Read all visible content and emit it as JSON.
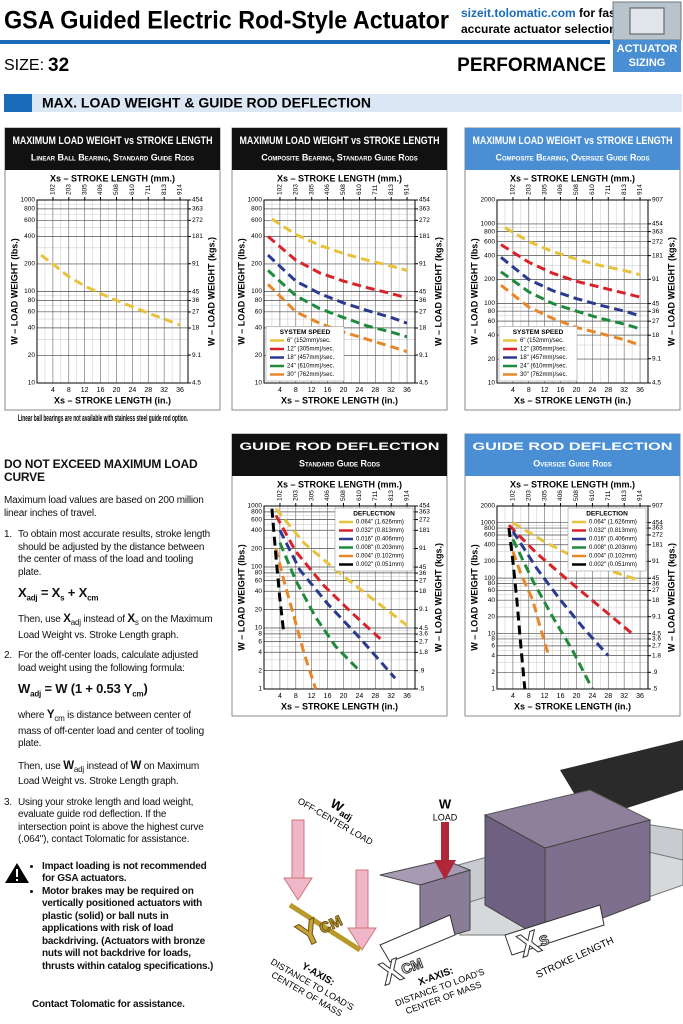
{
  "header": {
    "title": "GSA Guided Electric Rod-Style Actuator",
    "link": "sizeit.tolomatic.com",
    "link_text": " for fast,",
    "link_text2": "accurate actuator selection",
    "size_label": "SIZE:",
    "size": "32",
    "performance": "PERFORMANCE",
    "badge1": "ACTUATOR",
    "badge2": "SIZING"
  },
  "section": {
    "title": "MAX. LOAD WEIGHT & GUIDE ROD DEFLECTION"
  },
  "charts": [
    {
      "title": "MAXIMUM LOAD WEIGHT vs STROKE LENGTH",
      "subtitle": "Linear Ball Bearing, Standard Guide Rods",
      "header_color": "#111111",
      "x2label": "Xs – STROKE LENGTH (mm.)",
      "xlabel": "Xs – STROKE LENGTH (in.)",
      "ylabel": "W – LOAD WEIGHT (lbs.)",
      "y2label": "W – LOAD WEIGHT (kgs.)",
      "log_y": true,
      "xlim": [
        0,
        38
      ],
      "xticks": [
        4,
        8,
        12,
        16,
        20,
        24,
        28,
        32,
        36
      ],
      "x2lim": [
        0,
        965
      ],
      "x2ticks": [
        102,
        203,
        305,
        406,
        508,
        610,
        711,
        813,
        914
      ],
      "ylim": [
        10,
        1000
      ],
      "yticks": [
        10,
        20,
        40,
        60,
        80,
        100,
        200,
        400,
        600,
        800,
        1000
      ],
      "y2lim": [
        4.5,
        454
      ],
      "y2ticks": [
        4.5,
        9.1,
        18,
        27,
        36,
        45,
        91,
        181,
        272,
        363,
        454
      ],
      "series": [
        {
          "color": "#e8c23a",
          "x": [
            1,
            4,
            8,
            12,
            16,
            20,
            24,
            28,
            32,
            36
          ],
          "values": [
            250,
            200,
            145,
            115,
            95,
            80,
            68,
            58,
            50,
            43
          ]
        }
      ],
      "note": "Linear ball bearings are not available with stainless steel guide rod option."
    },
    {
      "title": "MAXIMUM LOAD WEIGHT vs STROKE LENGTH",
      "subtitle": "Composite Bearing, Standard Guide Rods",
      "header_color": "#111111",
      "x2label": "Xs – STROKE LENGTH (mm.)",
      "xlabel": "Xs – STROKE LENGTH (in.)",
      "ylabel": "W – LOAD WEIGHT (lbs.)",
      "y2label": "W – LOAD WEIGHT (kgs.)",
      "log_y": true,
      "xlim": [
        0,
        38
      ],
      "xticks": [
        4,
        8,
        12,
        16,
        20,
        24,
        28,
        32,
        36
      ],
      "x2lim": [
        0,
        965
      ],
      "x2ticks": [
        102,
        203,
        305,
        406,
        508,
        610,
        711,
        813,
        914
      ],
      "ylim": [
        10,
        1000
      ],
      "yticks": [
        10,
        20,
        40,
        60,
        80,
        100,
        200,
        400,
        600,
        800,
        1000
      ],
      "y2lim": [
        4.5,
        454
      ],
      "y2ticks": [
        4.5,
        9.1,
        18,
        27,
        36,
        45,
        91,
        181,
        272,
        363,
        454
      ],
      "legend_title": "SYSTEM SPEED",
      "legend": "lower left",
      "series": [
        {
          "name": "6\" (152mm)/sec.",
          "color": "#e8c23a",
          "x": [
            2,
            8,
            14,
            20,
            26,
            32,
            36
          ],
          "values": [
            620,
            420,
            320,
            260,
            220,
            190,
            170
          ]
        },
        {
          "name": "12\" (305mm)/sec.",
          "color": "#d8232a",
          "x": [
            1,
            8,
            14,
            20,
            26,
            32,
            36
          ],
          "values": [
            400,
            220,
            160,
            130,
            110,
            95,
            85
          ]
        },
        {
          "name": "18\" (457mm)/sec.",
          "color": "#2b3a8f",
          "x": [
            1,
            8,
            14,
            20,
            26,
            32,
            36
          ],
          "values": [
            250,
            130,
            95,
            75,
            62,
            52,
            45
          ]
        },
        {
          "name": "24\" (610mm)/sec.",
          "color": "#1e8a3c",
          "x": [
            1,
            8,
            14,
            20,
            26,
            32,
            36
          ],
          "values": [
            170,
            90,
            65,
            52,
            42,
            36,
            32
          ]
        },
        {
          "name": "30\" (762mm)/sec.",
          "color": "#e8872a",
          "x": [
            1,
            8,
            14,
            20,
            26,
            32,
            36
          ],
          "values": [
            120,
            60,
            45,
            36,
            30,
            25,
            22
          ]
        }
      ]
    },
    {
      "title": "MAXIMUM LOAD WEIGHT vs STROKE LENGTH",
      "subtitle": "Composite Bearing, Oversize Guide Rods",
      "header_color": "#4a8fd4",
      "x2label": "Xs – STROKE LENGTH (mm.)",
      "xlabel": "Xs – STROKE LENGTH (in.)",
      "ylabel": "W – LOAD WEIGHT (lbs.)",
      "y2label": "W – LOAD WEIGHT (kgs.)",
      "log_y": true,
      "xlim": [
        0,
        38
      ],
      "xticks": [
        4,
        8,
        12,
        16,
        20,
        24,
        28,
        32,
        36
      ],
      "x2lim": [
        0,
        965
      ],
      "x2ticks": [
        102,
        203,
        305,
        406,
        508,
        610,
        711,
        813,
        914
      ],
      "ylim": [
        10,
        2000
      ],
      "yticks": [
        10,
        20,
        40,
        60,
        80,
        100,
        200,
        400,
        600,
        800,
        1000,
        2000
      ],
      "y2lim": [
        4.5,
        907
      ],
      "y2ticks": [
        4.5,
        9.1,
        18,
        27,
        36,
        45,
        91,
        181,
        272,
        363,
        454,
        907
      ],
      "legend_title": "SYSTEM SPEED",
      "legend": "lower left",
      "series": [
        {
          "name": "6\" (152mm)/sec.",
          "color": "#e8c23a",
          "x": [
            2,
            8,
            14,
            20,
            26,
            32,
            36
          ],
          "values": [
            900,
            600,
            450,
            360,
            300,
            260,
            230
          ]
        },
        {
          "name": "12\" (305mm)/sec.",
          "color": "#d8232a",
          "x": [
            1,
            8,
            14,
            20,
            26,
            32,
            36
          ],
          "values": [
            550,
            330,
            240,
            190,
            160,
            135,
            120
          ]
        },
        {
          "name": "18\" (457mm)/sec.",
          "color": "#2b3a8f",
          "x": [
            1,
            8,
            14,
            20,
            26,
            32,
            36
          ],
          "values": [
            380,
            200,
            145,
            115,
            95,
            80,
            70
          ]
        },
        {
          "name": "24\" (610mm)/sec.",
          "color": "#1e8a3c",
          "x": [
            1,
            8,
            14,
            20,
            26,
            32,
            36
          ],
          "values": [
            250,
            140,
            100,
            80,
            65,
            55,
            48
          ]
        },
        {
          "name": "30\" (762mm)/sec.",
          "color": "#e8872a",
          "x": [
            1,
            8,
            14,
            20,
            26,
            32,
            36
          ],
          "values": [
            170,
            90,
            65,
            50,
            42,
            35,
            30
          ]
        }
      ]
    },
    {
      "title": "GUIDE ROD DEFLECTION",
      "subtitle": "Standard Guide Rods",
      "header_color": "#111111",
      "x2label": "Xs – STROKE LENGTH (mm.)",
      "xlabel": "Xs – STROKE LENGTH (in.)",
      "ylabel": "W – LOAD WEIGHT (lbs.)",
      "y2label": "W – LOAD WEIGHT (kgs.)",
      "log_y": true,
      "xlim": [
        0,
        38
      ],
      "xticks": [
        4,
        8,
        12,
        16,
        20,
        24,
        28,
        32,
        36
      ],
      "x2lim": [
        0,
        965
      ],
      "x2ticks": [
        102,
        203,
        305,
        406,
        508,
        610,
        711,
        813,
        914
      ],
      "ylim": [
        1,
        1000
      ],
      "yticks": [
        1,
        2,
        4,
        6,
        8,
        10,
        20,
        40,
        60,
        80,
        100,
        200,
        400,
        600,
        800,
        1000
      ],
      "y2lim": [
        0.45,
        454
      ],
      "y2ticks": [
        {
          "value": 0.45,
          "label": ".5"
        },
        {
          "value": 0.9,
          "label": ".9"
        },
        1.8,
        2.7,
        3.6,
        4.5,
        9.1,
        18,
        27,
        36,
        45,
        91,
        181,
        272,
        363,
        454
      ],
      "legend_title": "DEFLECTION",
      "legend": "upper right",
      "series": [
        {
          "name": "0.064\" (1.626mm)",
          "color": "#e8c23a",
          "x": [
            3,
            10,
            18,
            26,
            36
          ],
          "values": [
            900,
            250,
            90,
            35,
            11
          ]
        },
        {
          "name": "0.032\" (0.813mm)",
          "color": "#d8232a",
          "x": [
            3,
            8,
            15,
            22,
            30
          ],
          "values": [
            700,
            180,
            50,
            18,
            6
          ]
        },
        {
          "name": "0.016\" (0.406mm)",
          "color": "#2b3a8f",
          "x": [
            4,
            9,
            16,
            24,
            33
          ],
          "values": [
            400,
            90,
            25,
            7,
            1.5
          ]
        },
        {
          "name": "0.008\" (0.203mm)",
          "color": "#1e8a3c",
          "x": [
            4,
            8,
            13,
            18,
            24
          ],
          "values": [
            250,
            60,
            15,
            5,
            2
          ]
        },
        {
          "name": "0.004\" (0.102mm)",
          "color": "#e8872a",
          "x": [
            3,
            5,
            8,
            10,
            13
          ],
          "values": [
            200,
            60,
            12,
            4,
            1
          ]
        },
        {
          "name": "0.002\" (0.051mm)",
          "color": "#000000",
          "x": [
            2,
            3,
            4,
            5
          ],
          "values": [
            900,
            150,
            30,
            8
          ]
        }
      ]
    },
    {
      "title": "GUIDE ROD DEFLECTION",
      "subtitle": "Oversize Guide Rods",
      "header_color": "#4a8fd4",
      "x2label": "Xs – STROKE LENGTH (mm.)",
      "xlabel": "Xs – STROKE LENGTH (in.)",
      "ylabel": "W – LOAD WEIGHT (lbs.)",
      "y2label": "W – LOAD WEIGHT (kgs.)",
      "log_y": true,
      "xlim": [
        0,
        38
      ],
      "xticks": [
        4,
        8,
        12,
        16,
        20,
        24,
        28,
        32,
        36
      ],
      "x2lim": [
        0,
        965
      ],
      "x2ticks": [
        102,
        203,
        305,
        406,
        508,
        610,
        711,
        813,
        914
      ],
      "ylim": [
        1,
        2000
      ],
      "yticks": [
        1,
        2,
        4,
        6,
        8,
        10,
        20,
        40,
        60,
        80,
        100,
        200,
        400,
        600,
        800,
        1000,
        2000
      ],
      "y2lim": [
        0.45,
        907
      ],
      "y2ticks": [
        {
          "value": 0.45,
          "label": ".5"
        },
        {
          "value": 0.9,
          "label": ".9"
        },
        1.8,
        2.7,
        3.6,
        4.5,
        9.1,
        18,
        27,
        36,
        45,
        91,
        181,
        272,
        363,
        454,
        907
      ],
      "legend_title": "DEFLECTION",
      "legend": "upper right",
      "series": [
        {
          "name": "0.064\" (1.626mm)",
          "color": "#e8c23a",
          "x": [
            4,
            12,
            20,
            28,
            36
          ],
          "values": [
            1000,
            450,
            230,
            140,
            90
          ]
        },
        {
          "name": "0.032\" (0.813mm)",
          "color": "#d8232a",
          "x": [
            3,
            10,
            18,
            26,
            34
          ],
          "values": [
            900,
            280,
            90,
            30,
            10
          ]
        },
        {
          "name": "0.016\" (0.406mm)",
          "color": "#2b3a8f",
          "x": [
            4,
            10,
            16,
            22,
            28
          ],
          "values": [
            700,
            150,
            40,
            12,
            4
          ]
        },
        {
          "name": "0.008\" (0.203mm)",
          "color": "#1e8a3c",
          "x": [
            4,
            9,
            14,
            19,
            24
          ],
          "values": [
            500,
            90,
            20,
            5,
            1
          ]
        },
        {
          "name": "0.004\" (0.102mm)",
          "color": "#e8872a",
          "x": [
            4,
            6,
            9,
            11,
            13
          ],
          "values": [
            300,
            120,
            40,
            12,
            4
          ]
        },
        {
          "name": "0.002\" (0.051mm)",
          "color": "#000000",
          "x": [
            3,
            4,
            5,
            6,
            7
          ],
          "values": [
            800,
            200,
            40,
            6,
            1
          ]
        }
      ]
    }
  ],
  "instructions": {
    "heading": "DO NOT EXCEED MAXIMUM LOAD CURVE",
    "intro": "Maximum load values are based on 200 million linear inches of travel.",
    "steps": [
      {
        "number": "1.",
        "text": "To obtain most accurate results, stroke length should be adjusted by the distance between the center of mass of the load and tooling plate.",
        "formula": [
          "X",
          "adj",
          " = X",
          "s",
          " + X",
          "cm"
        ],
        "then": [
          "Then, use ",
          "X",
          "adj",
          " instead of ",
          "X",
          "s",
          " on the Maximum Load Weight vs. Stroke Length graph."
        ]
      },
      {
        "number": "2.",
        "text": "For the off-center loads, calculate adjusted load weight using the following formula:",
        "formula": [
          "W",
          "adj",
          " = W (1 + 0.53 Y",
          "cm",
          ")"
        ],
        "where": [
          "where ",
          "Y",
          "cm",
          " is distance between center of mass of off-center load and center of tooling plate."
        ],
        "then": [
          "Then, use ",
          "W",
          "adj",
          " instead of ",
          "W",
          " on Maximum Load Weight vs. Stroke Length graph."
        ]
      },
      {
        "number": "3.",
        "text": "Using your stroke length and load weight, evaluate guide rod deflection. If the intersection point is above the highest curve (.064\"), contact Tolomatic for assistance."
      }
    ],
    "warnings": [
      "Impact loading is not recommended for GSA actuators.",
      "Motor brakes may be required on vertically positioned actuators with plastic (solid) or ball nuts in applications with risk of load backdriving. (Actuators with bronze nuts will not backdrive for loads, thrusts within catalog specifications.)"
    ],
    "contact": "Contact Tolomatic for assistance."
  },
  "illustration": {
    "w": "W",
    "load": "LOAD",
    "wadj": "W",
    "wadj_sub": "adj",
    "off_center": "OFF-CENTER LOAD",
    "ycm": "Y",
    "ycm_sub": "CM",
    "y_axis": "Y-AXIS:",
    "y_axis_desc1": "DISTANCE TO LOAD'S",
    "y_axis_desc2": "CENTER OF MASS",
    "xcm": "X",
    "xcm_sub": "CM",
    "x_axis": "X-AXIS:",
    "x_axis_desc1": "DISTANCE TO LOAD'S",
    "x_axis_desc2": "CENTER OF MASS",
    "xs": "X",
    "xs_sub": "S",
    "stroke": "STROKE LENGTH"
  }
}
